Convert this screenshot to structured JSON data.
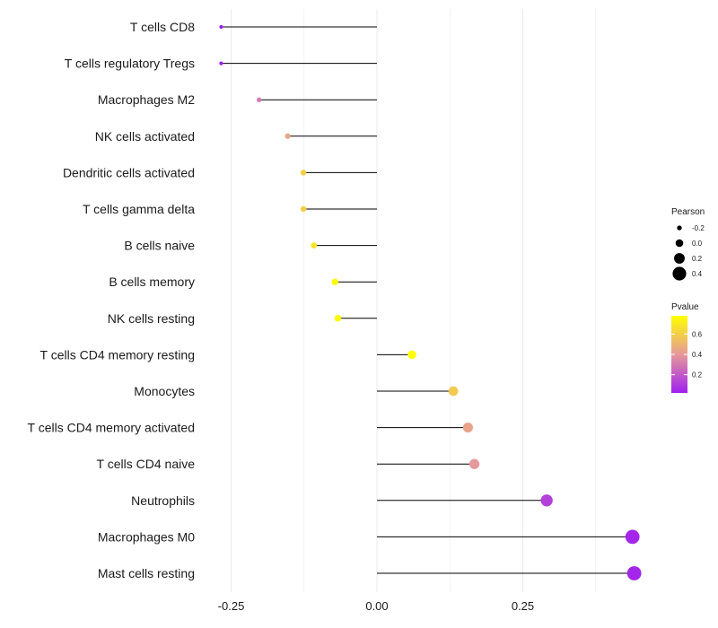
{
  "chart_data": {
    "type": "lollipop",
    "title": "",
    "xlabel": "",
    "ylabel": "",
    "xlim": [
      -0.28,
      0.45
    ],
    "x_ticks": [
      -0.25,
      0.0,
      0.25
    ],
    "x_tick_labels": [
      "-0.25",
      "0.00",
      "0.25"
    ],
    "grid": true,
    "colors": {
      "low": "#a020f0",
      "high": "#ffff00",
      "stem": "#000000",
      "grid": "#ebebeb"
    },
    "categories": [
      "T cells CD8",
      "T cells regulatory  Tregs",
      "Macrophages M2",
      "NK cells activated",
      "Dendritic cells activated",
      "T cells gamma delta",
      "B cells naive",
      "B cells memory",
      "NK cells resting",
      "T cells CD4 memory resting",
      "Monocytes",
      "T cells CD4 memory activated",
      "T cells CD4 naive",
      "Neutrophils",
      "Macrophages M0",
      "Mast cells resting"
    ],
    "values": [
      -0.267,
      -0.267,
      -0.202,
      -0.153,
      -0.126,
      -0.126,
      -0.108,
      -0.072,
      -0.067,
      0.06,
      0.131,
      0.156,
      0.167,
      0.291,
      0.438,
      0.441
    ],
    "pvalues": [
      0.02,
      0.02,
      0.3,
      0.45,
      0.6,
      0.6,
      0.68,
      0.76,
      0.76,
      0.8,
      0.58,
      0.44,
      0.4,
      0.12,
      0.04,
      0.04
    ],
    "legend_size": {
      "title": "Pearson",
      "values": [
        -0.2,
        0.0,
        0.2,
        0.4
      ],
      "labels": [
        "-0.2",
        "0.0",
        "0.2",
        "0.4"
      ]
    },
    "legend_color": {
      "title": "Pvalue",
      "range": [
        0.02,
        0.78
      ],
      "ticks": [
        0.6,
        0.4,
        0.2
      ],
      "labels": [
        "0.6",
        "0.4",
        "0.2"
      ]
    }
  }
}
